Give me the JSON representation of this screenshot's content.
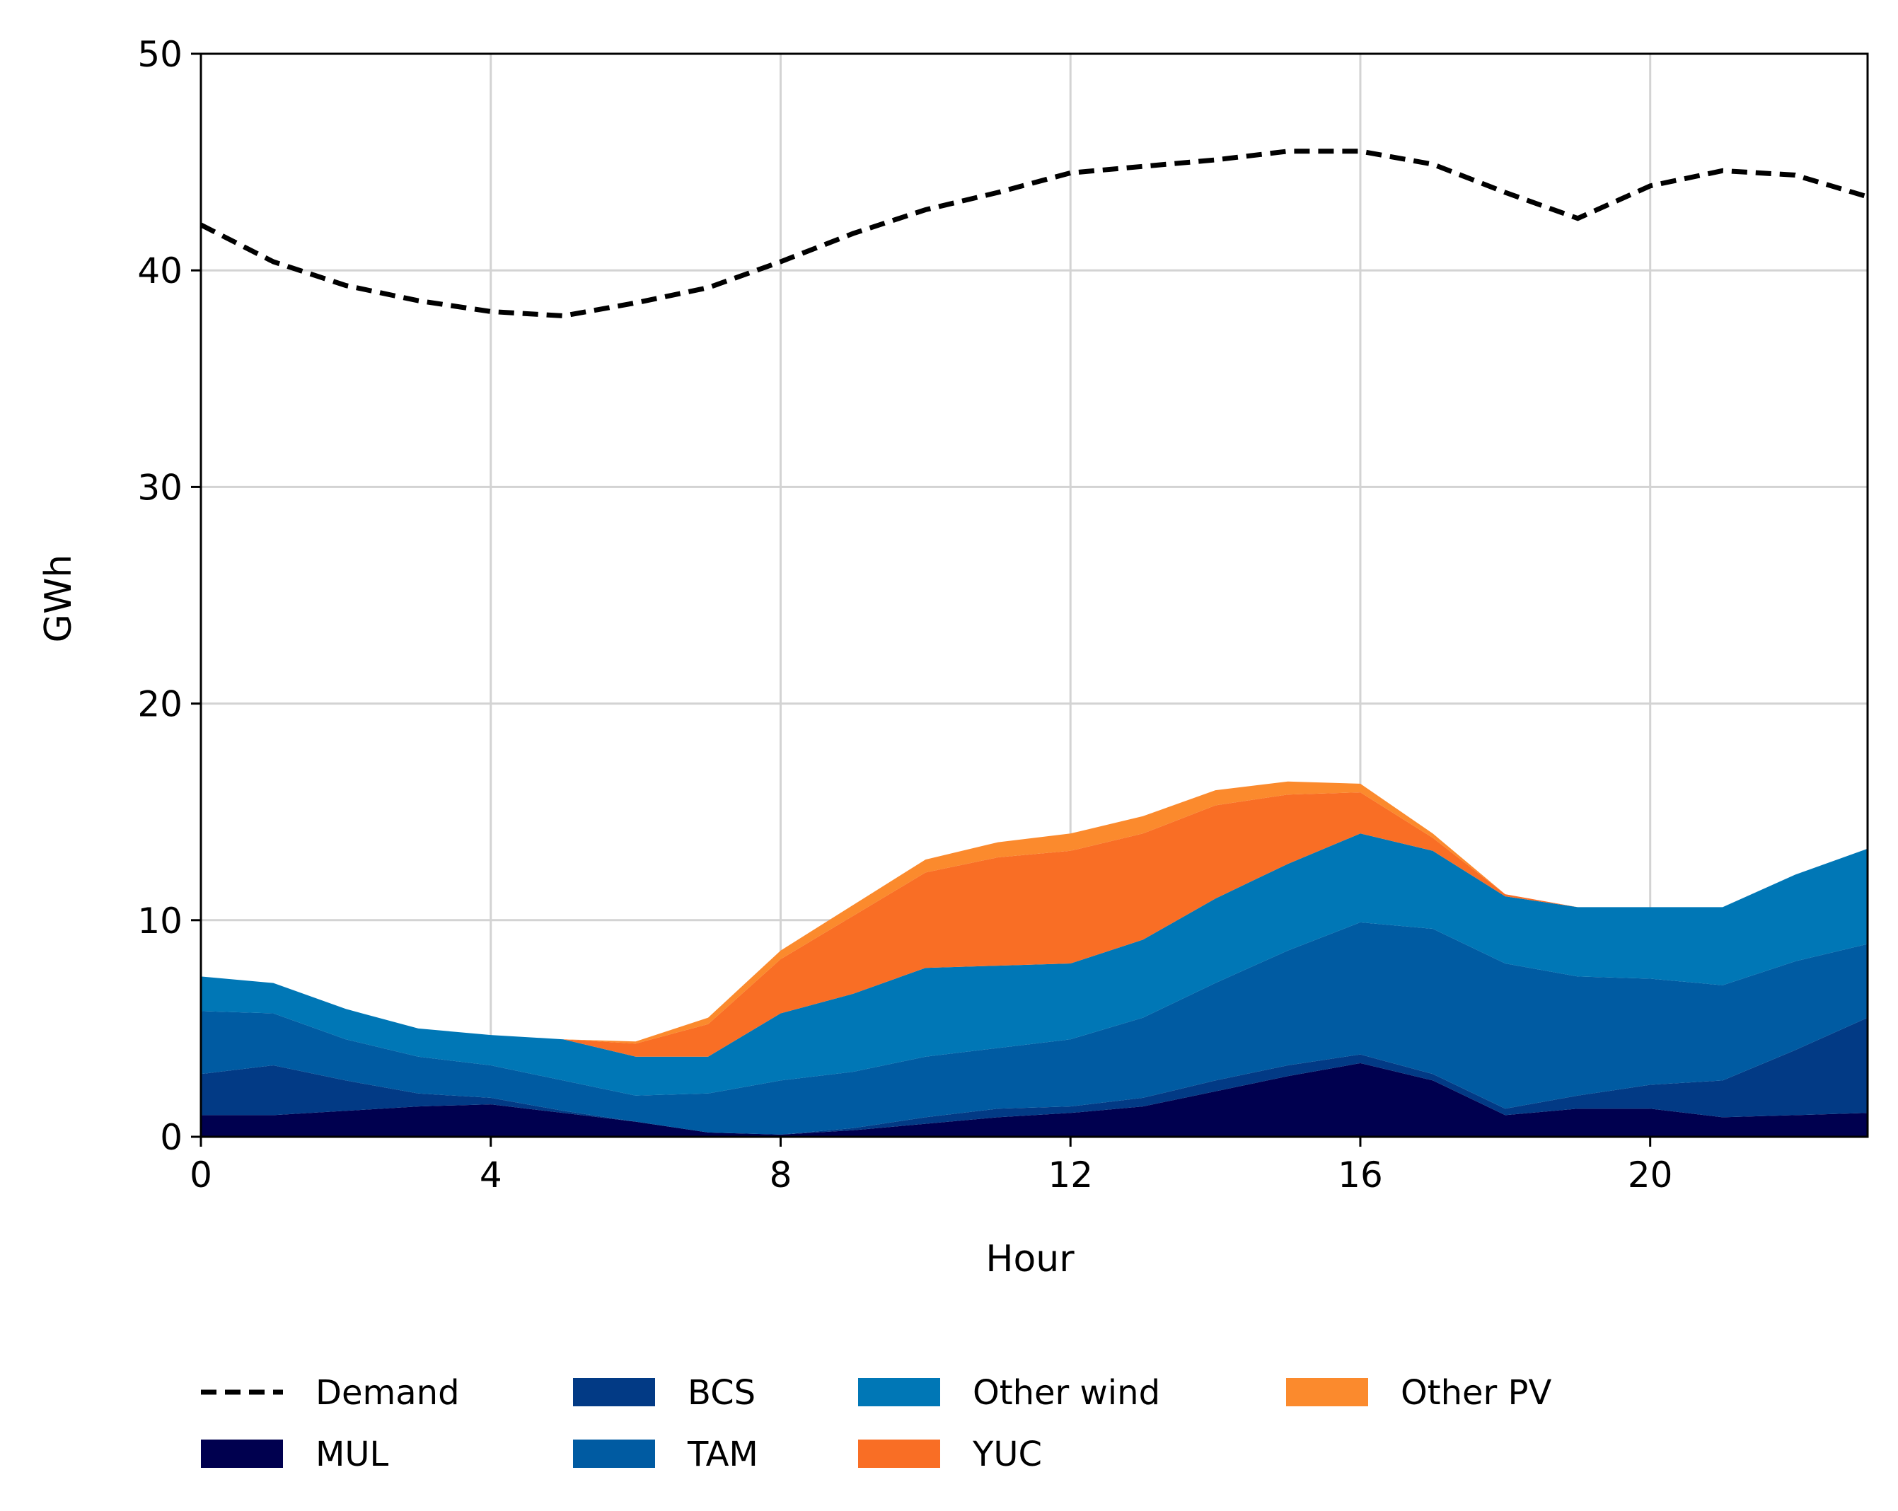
{
  "chart_data": {
    "type": "area",
    "title": "",
    "xlabel": "Hour",
    "ylabel": "GWh",
    "xlim": [
      0,
      23
    ],
    "ylim": [
      0,
      50
    ],
    "xticks": [
      0,
      4,
      8,
      12,
      16,
      20
    ],
    "yticks": [
      0,
      10,
      20,
      30,
      40,
      50
    ],
    "grid": true,
    "legend_position": "bottom",
    "x": [
      0,
      1,
      2,
      3,
      4,
      5,
      6,
      7,
      8,
      9,
      10,
      11,
      12,
      13,
      14,
      15,
      16,
      17,
      18,
      19,
      20,
      21,
      22,
      23
    ],
    "line_series": [
      {
        "name": "Demand",
        "style": "dashed",
        "color": "#000000",
        "values": [
          42.1,
          40.4,
          39.3,
          38.6,
          38.1,
          37.9,
          38.5,
          39.2,
          40.4,
          41.7,
          42.8,
          43.6,
          44.5,
          44.8,
          45.1,
          45.5,
          45.5,
          44.9,
          43.6,
          42.4,
          43.9,
          44.6,
          44.4,
          43.4
        ]
      }
    ],
    "stack_series": [
      {
        "name": "MUL",
        "color": "#00004f",
        "values": [
          1.0,
          1.0,
          1.2,
          1.4,
          1.5,
          1.1,
          0.7,
          0.2,
          0.1,
          0.3,
          0.6,
          0.9,
          1.1,
          1.4,
          2.1,
          2.8,
          3.4,
          2.6,
          1.0,
          1.3,
          1.3,
          0.9,
          1.0,
          1.1
        ]
      },
      {
        "name": "BCS",
        "color": "#023a85",
        "values": [
          1.9,
          2.3,
          1.4,
          0.6,
          0.3,
          0.1,
          0.0,
          0.0,
          0.0,
          0.1,
          0.3,
          0.4,
          0.3,
          0.4,
          0.5,
          0.5,
          0.4,
          0.3,
          0.3,
          0.6,
          1.1,
          1.7,
          3.0,
          4.4
        ]
      },
      {
        "name": "TAM",
        "color": "#005ba2",
        "values": [
          2.9,
          2.4,
          1.9,
          1.7,
          1.5,
          1.4,
          1.2,
          1.8,
          2.5,
          2.6,
          2.8,
          2.8,
          3.1,
          3.7,
          4.5,
          5.3,
          6.1,
          6.7,
          6.7,
          5.5,
          4.9,
          4.4,
          4.1,
          3.4
        ]
      },
      {
        "name": "Other wind",
        "color": "#0077b6",
        "values": [
          1.6,
          1.4,
          1.4,
          1.3,
          1.4,
          1.9,
          1.8,
          1.7,
          3.1,
          3.6,
          4.1,
          3.8,
          3.5,
          3.6,
          3.9,
          4.0,
          4.1,
          3.6,
          3.1,
          3.2,
          3.3,
          3.6,
          4.0,
          4.4
        ]
      },
      {
        "name": "YUC",
        "color": "#f96e25",
        "values": [
          0.0,
          0.0,
          0.0,
          0.0,
          0.0,
          0.0,
          0.6,
          1.5,
          2.5,
          3.6,
          4.4,
          5.0,
          5.2,
          4.9,
          4.3,
          3.2,
          1.9,
          0.6,
          0.1,
          0.0,
          0.0,
          0.0,
          0.0,
          0.0
        ]
      },
      {
        "name": "Other PV",
        "color": "#fb8a2d",
        "values": [
          0.0,
          0.0,
          0.0,
          0.0,
          0.0,
          0.0,
          0.1,
          0.3,
          0.4,
          0.5,
          0.6,
          0.7,
          0.8,
          0.8,
          0.7,
          0.6,
          0.4,
          0.2,
          0.0,
          0.0,
          0.0,
          0.0,
          0.0,
          0.0
        ]
      }
    ],
    "legend": [
      {
        "label": "Demand",
        "kind": "line",
        "color": "#000000"
      },
      {
        "label": "MUL",
        "kind": "patch",
        "color": "#00004f"
      },
      {
        "label": "BCS",
        "kind": "patch",
        "color": "#023a85"
      },
      {
        "label": "TAM",
        "kind": "patch",
        "color": "#005ba2"
      },
      {
        "label": "Other wind",
        "kind": "patch",
        "color": "#0077b6"
      },
      {
        "label": "YUC",
        "kind": "patch",
        "color": "#f96e25"
      },
      {
        "label": "Other PV",
        "kind": "patch",
        "color": "#fb8a2d"
      }
    ]
  }
}
